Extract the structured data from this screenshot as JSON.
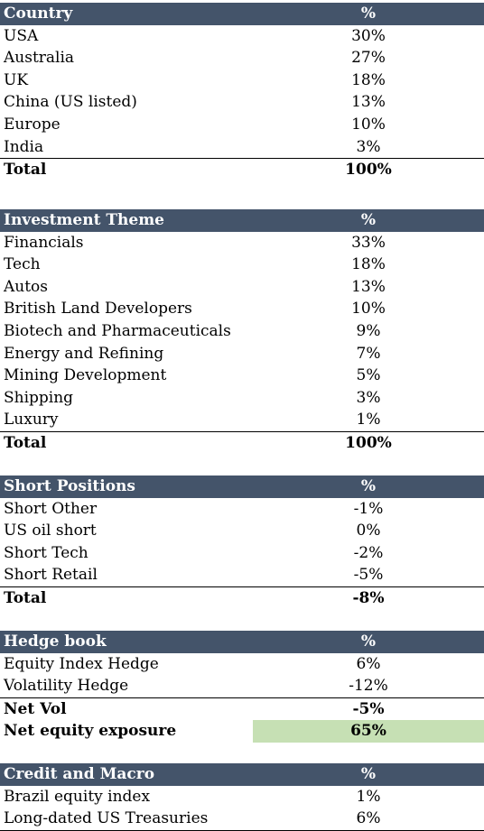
{
  "sections": [
    {
      "title": "Country",
      "col": "%",
      "rows": [
        {
          "label": "USA",
          "value": "30%"
        },
        {
          "label": "Australia",
          "value": "27%"
        },
        {
          "label": "UK",
          "value": "18%"
        },
        {
          "label": "China (US listed)",
          "value": "13%"
        },
        {
          "label": "Europe",
          "value": "10%"
        },
        {
          "label": "India",
          "value": "3%"
        }
      ],
      "total": {
        "label": "Total",
        "value": "100%"
      }
    },
    {
      "title": "Investment Theme",
      "col": "%",
      "rows": [
        {
          "label": "Financials",
          "value": "33%"
        },
        {
          "label": "Tech",
          "value": "18%"
        },
        {
          "label": "Autos",
          "value": "13%"
        },
        {
          "label": "British Land Developers",
          "value": "10%"
        },
        {
          "label": "Biotech and Pharmaceuticals",
          "value": "9%"
        },
        {
          "label": "Energy and Refining",
          "value": "7%"
        },
        {
          "label": "Mining Development",
          "value": "5%"
        },
        {
          "label": "Shipping",
          "value": "3%"
        },
        {
          "label": "Luxury",
          "value": "1%"
        }
      ],
      "total": {
        "label": "Total",
        "value": "100%"
      }
    },
    {
      "title": "Short Positions",
      "col": "%",
      "rows": [
        {
          "label": "Short Other",
          "value": "-1%"
        },
        {
          "label": "US oil short",
          "value": "0%"
        },
        {
          "label": "Short Tech",
          "value": "-2%"
        },
        {
          "label": "Short Retail",
          "value": "-5%"
        }
      ],
      "total": {
        "label": "Total",
        "value": "-8%"
      }
    },
    {
      "title": "Hedge book",
      "col": "%",
      "rows": [
        {
          "label": "Equity Index Hedge",
          "value": "6%"
        },
        {
          "label": "Volatility Hedge",
          "value": "-12%"
        }
      ],
      "net_vol": {
        "label": "Net Vol",
        "value": "-5%"
      },
      "net_equity": {
        "label": "Net equity exposure",
        "value": "65%"
      }
    },
    {
      "title": "Credit and Macro",
      "col": "%",
      "rows": [
        {
          "label": "Brazil equity index",
          "value": "1%"
        },
        {
          "label": "Long-dated US Treasuries",
          "value": "6%"
        }
      ]
    }
  ],
  "colors": {
    "header_bg": "#44546a",
    "highlight": "#c6e0b4"
  }
}
